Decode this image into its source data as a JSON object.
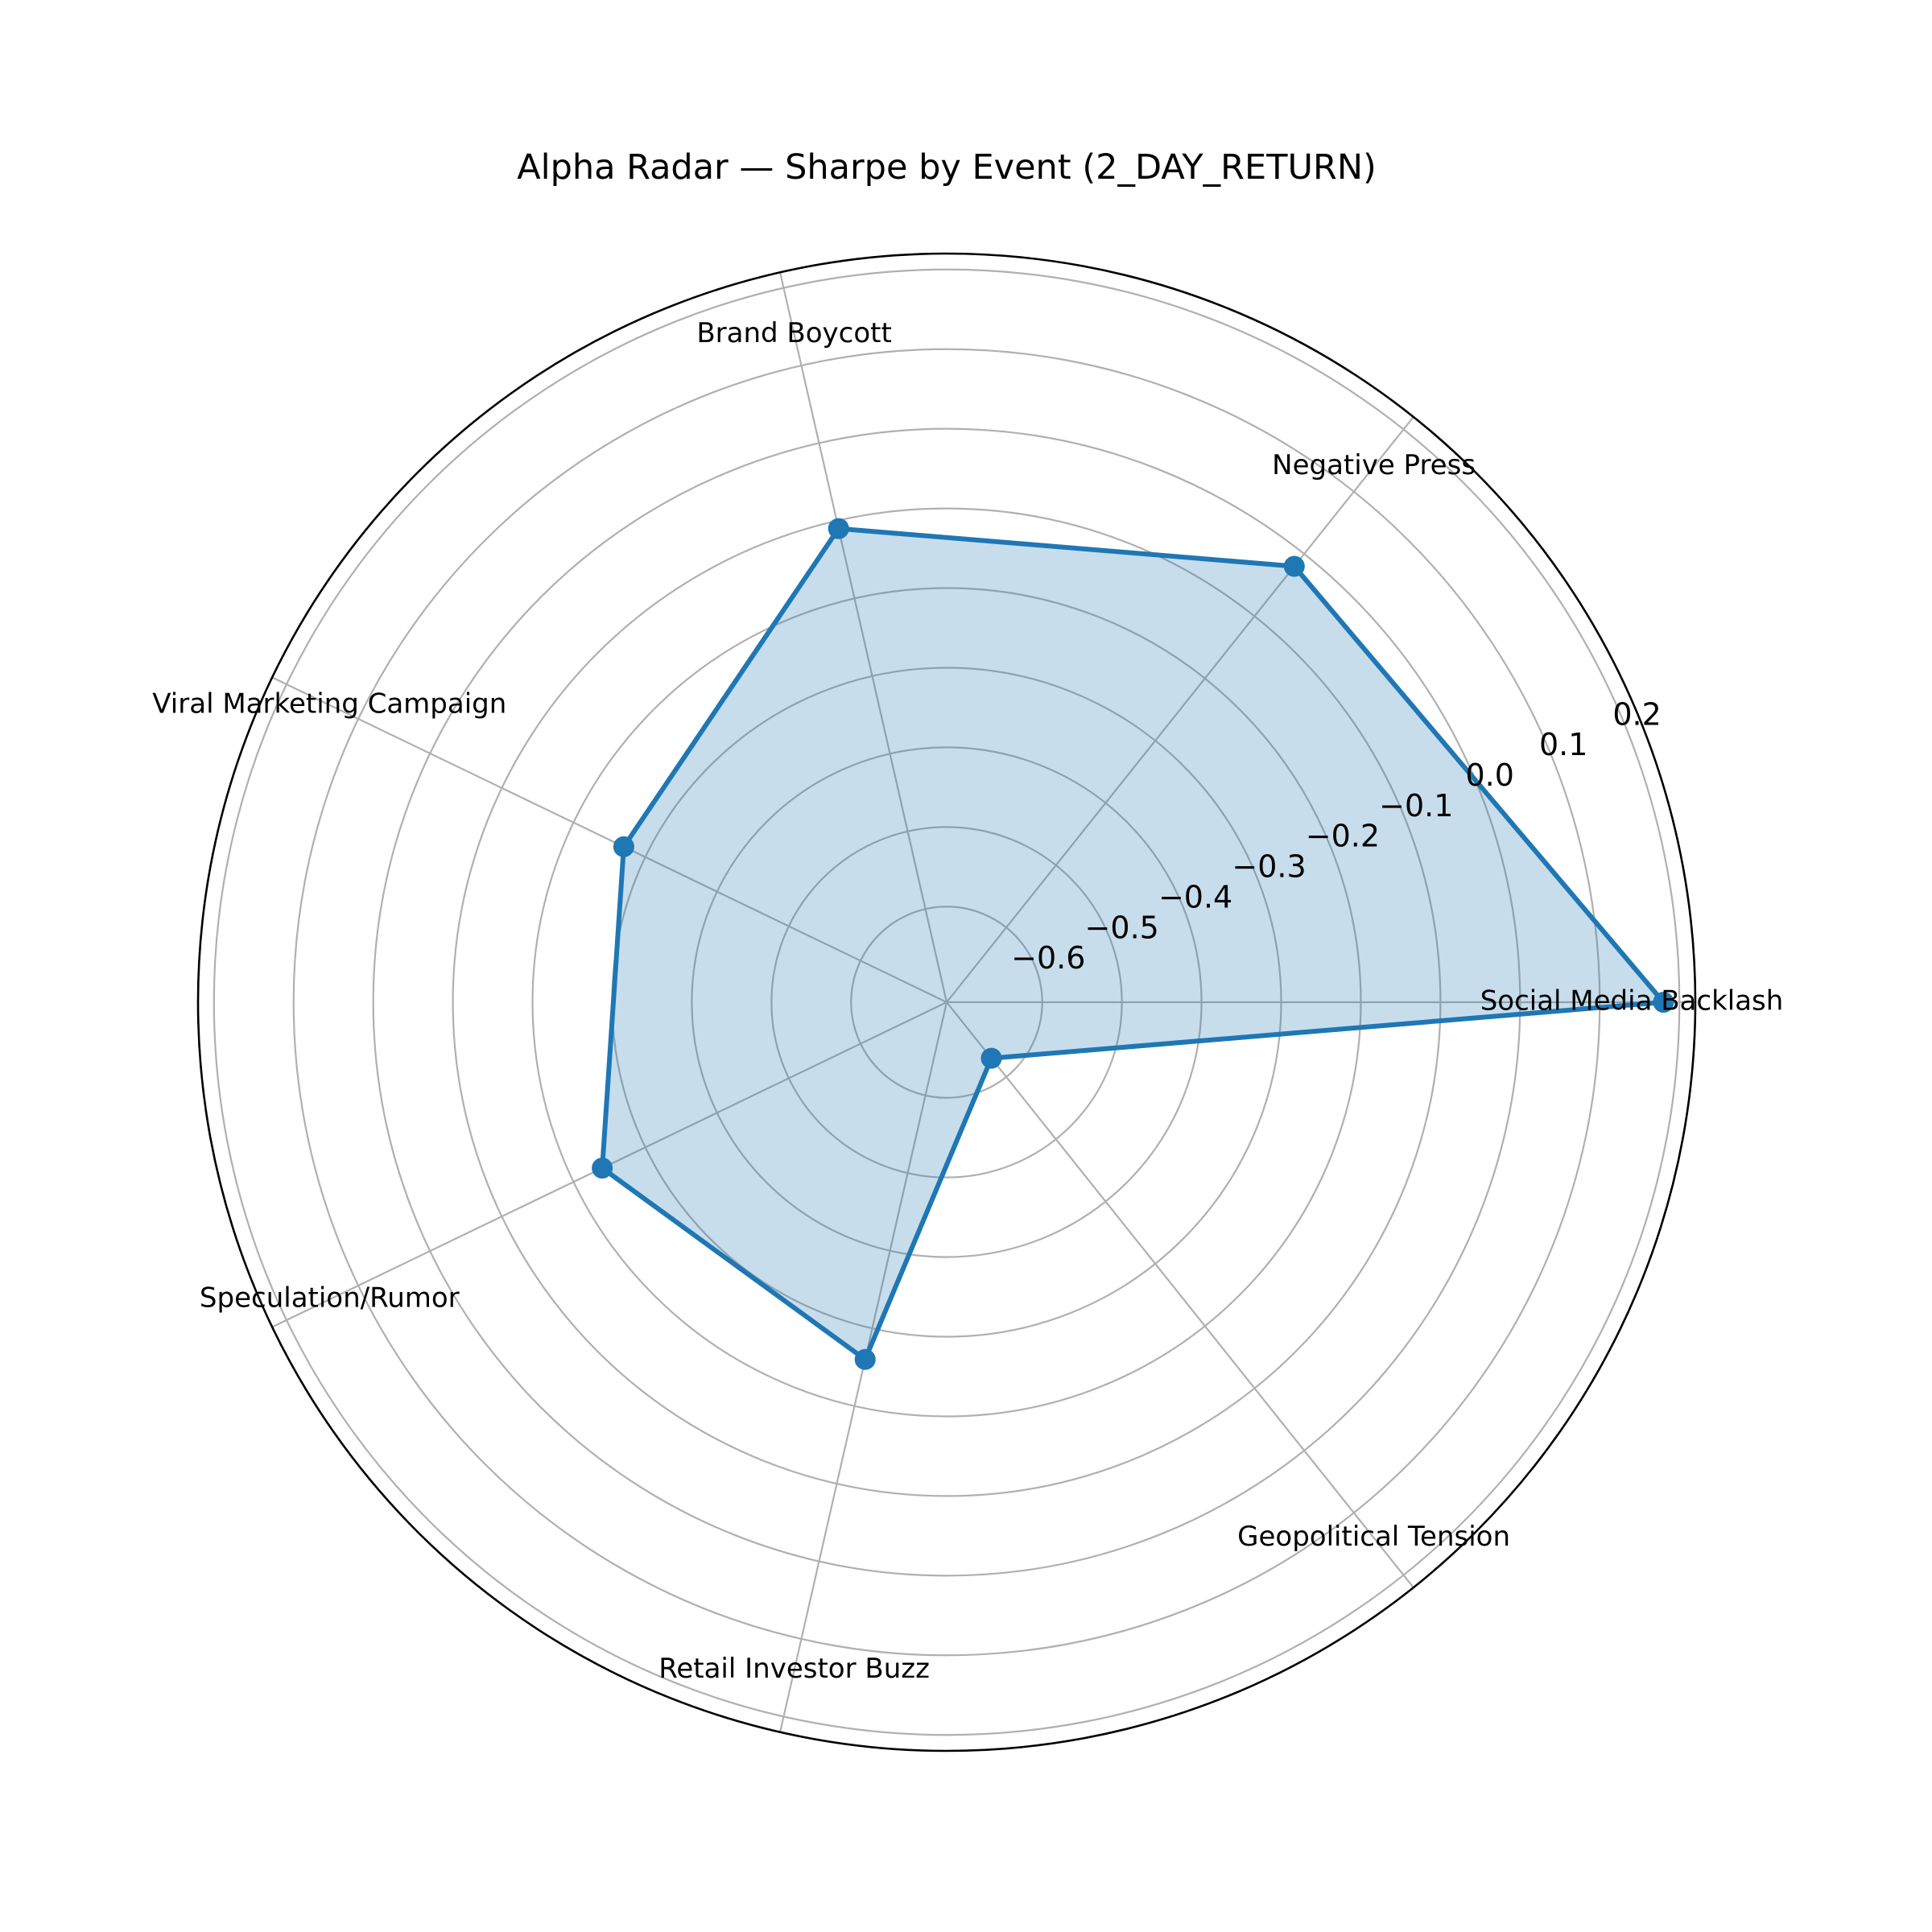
{
  "chart_data": {
    "type": "radar",
    "title": "Alpha Radar — Sharpe by Event (2_DAY_RETURN)",
    "categories": [
      "Social Media Backlash",
      "Negative Press",
      "Brand Boycott",
      "Viral Marketing Campaign",
      "Speculation/Rumor",
      "Retail Investor Buzz",
      "Geopolitical Tension"
    ],
    "values": [
      0.18,
      -0.02,
      -0.11,
      -0.27,
      -0.24,
      -0.26,
      -0.63
    ],
    "rlim": [
      -0.72,
      0.22
    ],
    "rticks": [
      -0.6,
      -0.5,
      -0.4,
      -0.3,
      -0.2,
      -0.1,
      0.0,
      0.1,
      0.2
    ],
    "rtick_labels": [
      "−0.6",
      "−0.5",
      "−0.4",
      "−0.3",
      "−0.2",
      "−0.1",
      "0.0",
      "0.1",
      "0.2"
    ],
    "grid": true,
    "color": "#1f77b4",
    "fill_color": "#1f77b4"
  }
}
